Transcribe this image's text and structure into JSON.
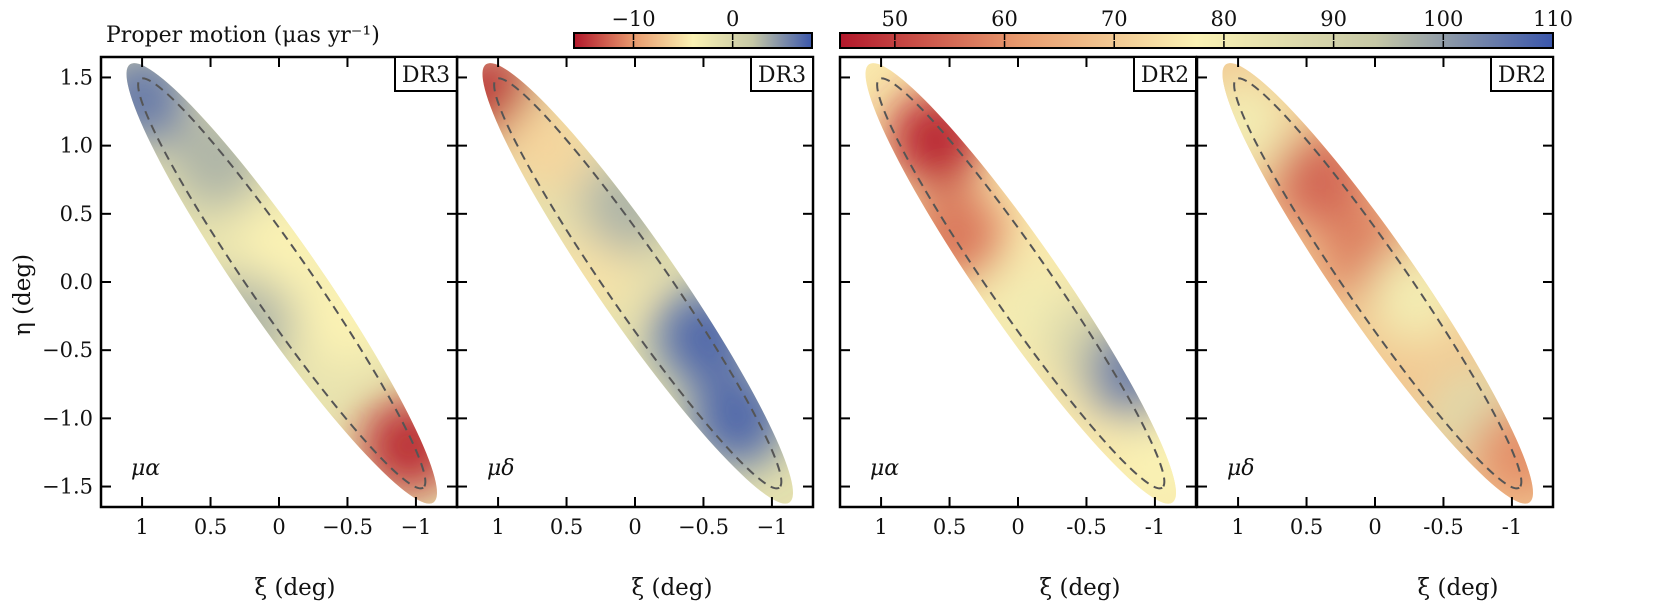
{
  "chart_data": {
    "type": "heatmap",
    "colorbar_title": "Proper motion (μas yr⁻¹)",
    "colorbars": [
      {
        "name": "DR3",
        "range": [
          -16,
          8
        ],
        "ticks": [
          -10,
          0
        ],
        "tick_labels": [
          "−10",
          "0"
        ],
        "stops": [
          "#b2182b",
          "#e89a6e",
          "#fbf2b4",
          "#c6c8a6",
          "#3a56ab"
        ]
      },
      {
        "name": "DR2",
        "range": [
          45,
          110
        ],
        "ticks": [
          50,
          60,
          70,
          80,
          90,
          100,
          110
        ],
        "tick_labels": [
          "50",
          "60",
          "70",
          "80",
          "90",
          "100",
          "110"
        ],
        "stops": [
          "#b2182b",
          "#e89a6e",
          "#fbf2b4",
          "#c6c8a6",
          "#3a56ab"
        ]
      }
    ],
    "xlabel": "ξ (deg)",
    "ylabel": "η (deg)",
    "xlim": [
      1.3,
      -1.3
    ],
    "ylim": [
      -1.65,
      1.65
    ],
    "grid": false,
    "panels": [
      {
        "tag": "DR3",
        "component": "μα",
        "scale": "DR3",
        "x_ticks": [
          1,
          0.5,
          0,
          -0.5,
          -1
        ],
        "x_tick_labels": [
          "1",
          "0.5",
          "0",
          "−0.5",
          "−1"
        ],
        "y_ticks": [
          1.5,
          1.0,
          0.5,
          0.0,
          -0.5,
          -1.0,
          -1.5
        ],
        "y_tick_labels": [
          "1.5",
          "1.0",
          "0.5",
          "0.0",
          "−0.5",
          "−1.0",
          "−1.5"
        ],
        "field": [
          {
            "xi": 1.0,
            "eta": 1.35,
            "value": 6
          },
          {
            "xi": 0.45,
            "eta": 0.9,
            "value": 3
          },
          {
            "xi": -0.05,
            "eta": 0.25,
            "value": -4
          },
          {
            "xi": 0.25,
            "eta": -0.3,
            "value": 3
          },
          {
            "xi": -0.5,
            "eta": -0.25,
            "value": -4
          },
          {
            "xi": -0.95,
            "eta": -1.2,
            "value": -15
          }
        ]
      },
      {
        "tag": "DR3",
        "component": "μδ",
        "scale": "DR3",
        "x_ticks": [
          1,
          0.5,
          0,
          -0.5,
          -1
        ],
        "x_tick_labels": [
          "1",
          "0.5",
          "0",
          "−0.5",
          "−1"
        ],
        "y_ticks": [
          1.5,
          1.0,
          0.5,
          0.0,
          -0.5,
          -1.0,
          -1.5
        ],
        "y_tick_labels": [],
        "field": [
          {
            "xi": 1.05,
            "eta": 1.35,
            "value": -15
          },
          {
            "xi": 0.65,
            "eta": 1.0,
            "value": -6
          },
          {
            "xi": 0.3,
            "eta": 0.15,
            "value": -5
          },
          {
            "xi": 0.05,
            "eta": 0.55,
            "value": 3
          },
          {
            "xi": -0.5,
            "eta": -0.4,
            "value": 7
          },
          {
            "xi": -0.75,
            "eta": -1.0,
            "value": 7
          }
        ]
      },
      {
        "tag": "DR2",
        "component": "μα",
        "scale": "DR2",
        "x_ticks": [
          1,
          0.5,
          0,
          -0.5,
          -1
        ],
        "x_tick_labels": [
          "1",
          "0.5",
          "0",
          "-0.5",
          "-1"
        ],
        "y_ticks": [
          1.5,
          1.0,
          0.5,
          0.0,
          -0.5,
          -1.0,
          -1.5
        ],
        "y_tick_labels": [],
        "field": [
          {
            "xi": 0.6,
            "eta": 1.05,
            "value": 47
          },
          {
            "xi": 0.45,
            "eta": 0.35,
            "value": 57
          },
          {
            "xi": -0.1,
            "eta": -0.2,
            "value": 80
          },
          {
            "xi": -0.55,
            "eta": -0.45,
            "value": 88
          },
          {
            "xi": -0.85,
            "eta": -0.65,
            "value": 104
          },
          {
            "xi": -1.05,
            "eta": -1.35,
            "value": 78
          }
        ]
      },
      {
        "tag": "DR2",
        "component": "μδ",
        "scale": "DR2",
        "x_ticks": [
          1,
          0.5,
          0,
          -0.5,
          -1
        ],
        "x_tick_labels": [
          "1",
          "0.5",
          "0",
          "-0.5",
          "-1"
        ],
        "y_ticks": [
          1.5,
          1.0,
          0.5,
          0.0,
          -0.5,
          -1.0,
          -1.5
        ],
        "y_tick_labels": [],
        "field": [
          {
            "xi": 1.0,
            "eta": 1.3,
            "value": 70
          },
          {
            "xi": 0.95,
            "eta": 1.15,
            "value": 80
          },
          {
            "xi": 0.4,
            "eta": 0.75,
            "value": 55
          },
          {
            "xi": 0.05,
            "eta": 0.2,
            "value": 58
          },
          {
            "xi": -0.3,
            "eta": -0.1,
            "value": 80
          },
          {
            "xi": -0.75,
            "eta": -1.0,
            "value": 86
          },
          {
            "xi": -1.05,
            "eta": -1.25,
            "value": 60
          }
        ]
      }
    ]
  }
}
